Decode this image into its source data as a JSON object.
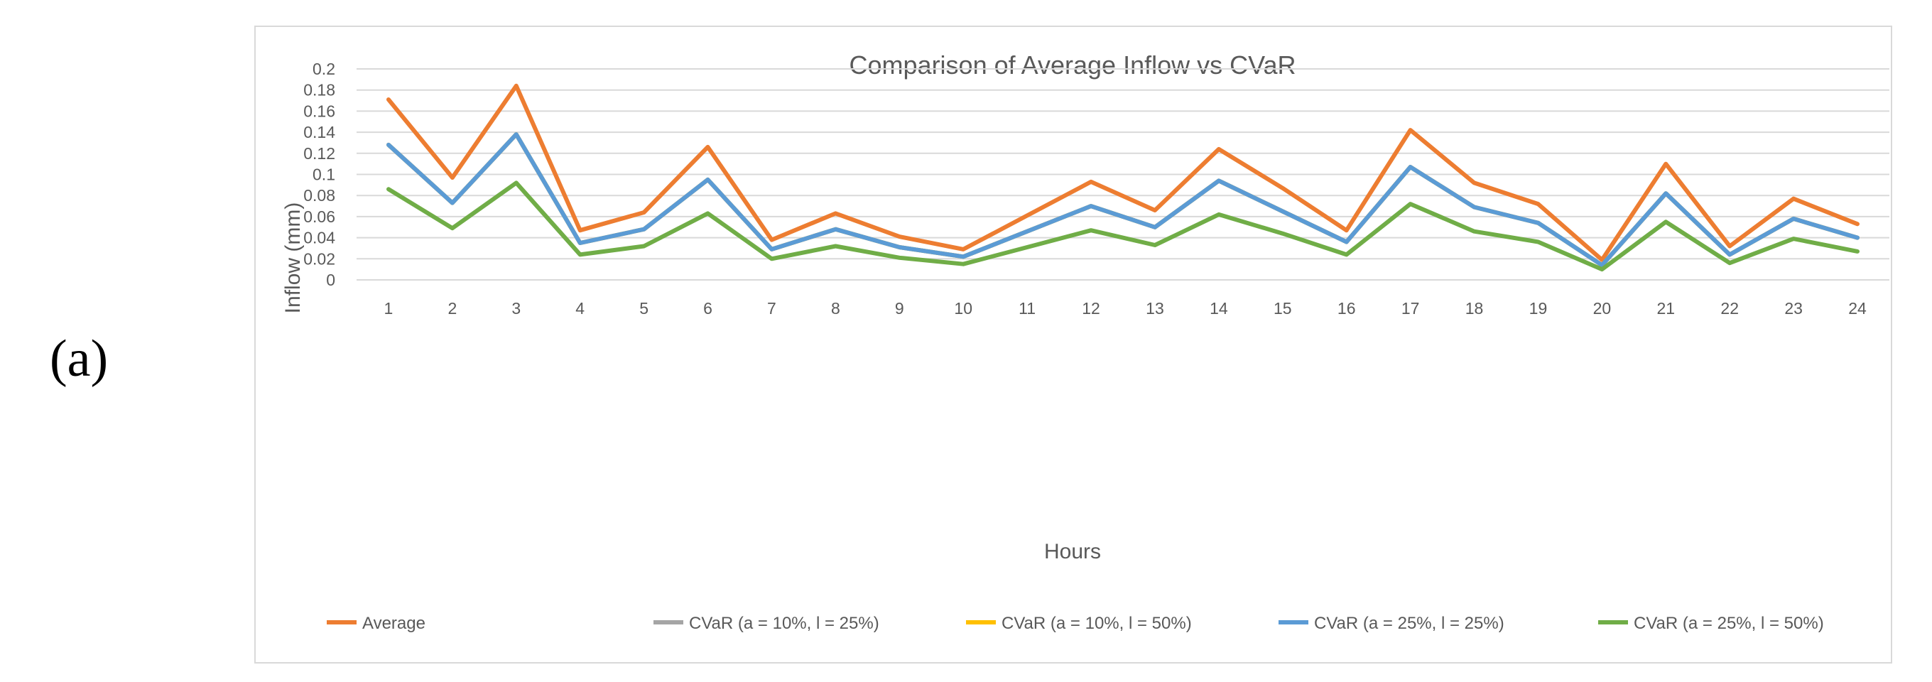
{
  "panel_label": "(a)",
  "chart_data": {
    "type": "line",
    "title": "Comparison of Average Inflow vs CVaR",
    "xlabel": "Hours",
    "ylabel": "Inflow (mm)",
    "categories": [
      "1",
      "2",
      "3",
      "4",
      "5",
      "6",
      "7",
      "8",
      "9",
      "10",
      "11",
      "12",
      "13",
      "14",
      "15",
      "16",
      "17",
      "18",
      "19",
      "20",
      "21",
      "22",
      "23",
      "24"
    ],
    "ylim": [
      0,
      0.2
    ],
    "yticks": [
      "0",
      "0.02",
      "0.04",
      "0.06",
      "0.08",
      "0.1",
      "0.12",
      "0.14",
      "0.16",
      "0.18",
      "0.2"
    ],
    "grid": true,
    "legend_position": "bottom",
    "series": [
      {
        "name": "Average",
        "color": "#ED7D31",
        "values": [
          0.171,
          0.097,
          0.184,
          0.047,
          0.064,
          0.126,
          0.038,
          0.063,
          0.041,
          0.029,
          0.061,
          0.093,
          0.066,
          0.124,
          0.087,
          0.047,
          0.142,
          0.092,
          0.072,
          0.019,
          0.11,
          0.032,
          0.077,
          0.053
        ]
      },
      {
        "name": "CVaR (a = 10%, l = 25%)",
        "color": "#A5A5A5",
        "values": [
          0.128,
          0.073,
          0.138,
          0.035,
          0.048,
          0.095,
          0.029,
          0.048,
          0.031,
          0.022,
          0.046,
          0.07,
          0.05,
          0.094,
          0.065,
          0.036,
          0.107,
          0.069,
          0.054,
          0.014,
          0.082,
          0.024,
          0.058,
          0.04
        ]
      },
      {
        "name": "CVaR (a = 10%, l = 50%)",
        "color": "#FFC000",
        "values": [
          0.128,
          0.073,
          0.138,
          0.035,
          0.048,
          0.095,
          0.029,
          0.048,
          0.031,
          0.022,
          0.046,
          0.07,
          0.05,
          0.094,
          0.065,
          0.036,
          0.107,
          0.069,
          0.054,
          0.014,
          0.082,
          0.024,
          0.058,
          0.04
        ]
      },
      {
        "name": "CVaR (a = 25%, l = 25%)",
        "color": "#5B9BD5",
        "values": [
          0.128,
          0.073,
          0.138,
          0.035,
          0.048,
          0.095,
          0.029,
          0.048,
          0.031,
          0.022,
          0.046,
          0.07,
          0.05,
          0.094,
          0.065,
          0.036,
          0.107,
          0.069,
          0.054,
          0.014,
          0.082,
          0.024,
          0.058,
          0.04
        ]
      },
      {
        "name": "CVaR (a = 25%, l = 50%)",
        "color": "#70AD47",
        "values": [
          0.086,
          0.049,
          0.092,
          0.024,
          0.032,
          0.063,
          0.02,
          0.032,
          0.021,
          0.015,
          0.031,
          0.047,
          0.033,
          0.062,
          0.044,
          0.024,
          0.072,
          0.046,
          0.036,
          0.01,
          0.055,
          0.016,
          0.039,
          0.027
        ]
      }
    ]
  }
}
